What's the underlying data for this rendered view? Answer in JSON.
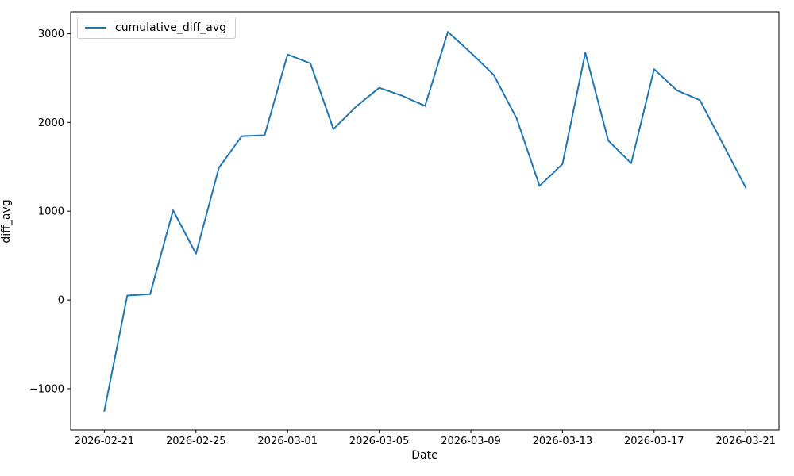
{
  "figure": {
    "background": "#ffffff",
    "spine_color": "#000000",
    "text_color": "#000000",
    "accent_line_color": "#1f77b4"
  },
  "legend": {
    "label": "cumulative_diff_avg"
  },
  "chart_data": {
    "type": "line",
    "title": "",
    "xlabel": "Date",
    "ylabel": "diff_avg",
    "grid": false,
    "legend_position": "upper left",
    "x": [
      "2026-02-21",
      "2026-02-22",
      "2026-02-23",
      "2026-02-24",
      "2026-02-25",
      "2026-02-26",
      "2026-02-27",
      "2026-02-28",
      "2026-03-01",
      "2026-03-02",
      "2026-03-03",
      "2026-03-04",
      "2026-03-05",
      "2026-03-06",
      "2026-03-07",
      "2026-03-08",
      "2026-03-09",
      "2026-03-10",
      "2026-03-11",
      "2026-03-12",
      "2026-03-13",
      "2026-03-14",
      "2026-03-15",
      "2026-03-16",
      "2026-03-17",
      "2026-03-18",
      "2026-03-19",
      "2026-03-20",
      "2026-03-21"
    ],
    "series": [
      {
        "name": "cumulative_diff_avg",
        "color": "#1f77b4",
        "values": [
          -1250,
          50,
          65,
          1010,
          520,
          1490,
          1845,
          1855,
          2765,
          2665,
          1925,
          2180,
          2390,
          2300,
          2185,
          3020,
          2785,
          2535,
          2045,
          1285,
          1530,
          2785,
          1795,
          1540,
          2600,
          2360,
          2250,
          1760,
          1265
        ]
      }
    ],
    "x_tick_labels": [
      "2026-02-21",
      "2026-02-25",
      "2026-03-01",
      "2026-03-05",
      "2026-03-09",
      "2026-03-13",
      "2026-03-17",
      "2026-03-21"
    ],
    "x_tick_day_indices": [
      0,
      4,
      8,
      12,
      16,
      20,
      24,
      28
    ],
    "y_ticks": [
      -1000,
      0,
      1000,
      2000,
      3000
    ],
    "ylim": [
      -1465,
      3245
    ],
    "xlim_days": [
      -1.47,
      29.45
    ]
  }
}
